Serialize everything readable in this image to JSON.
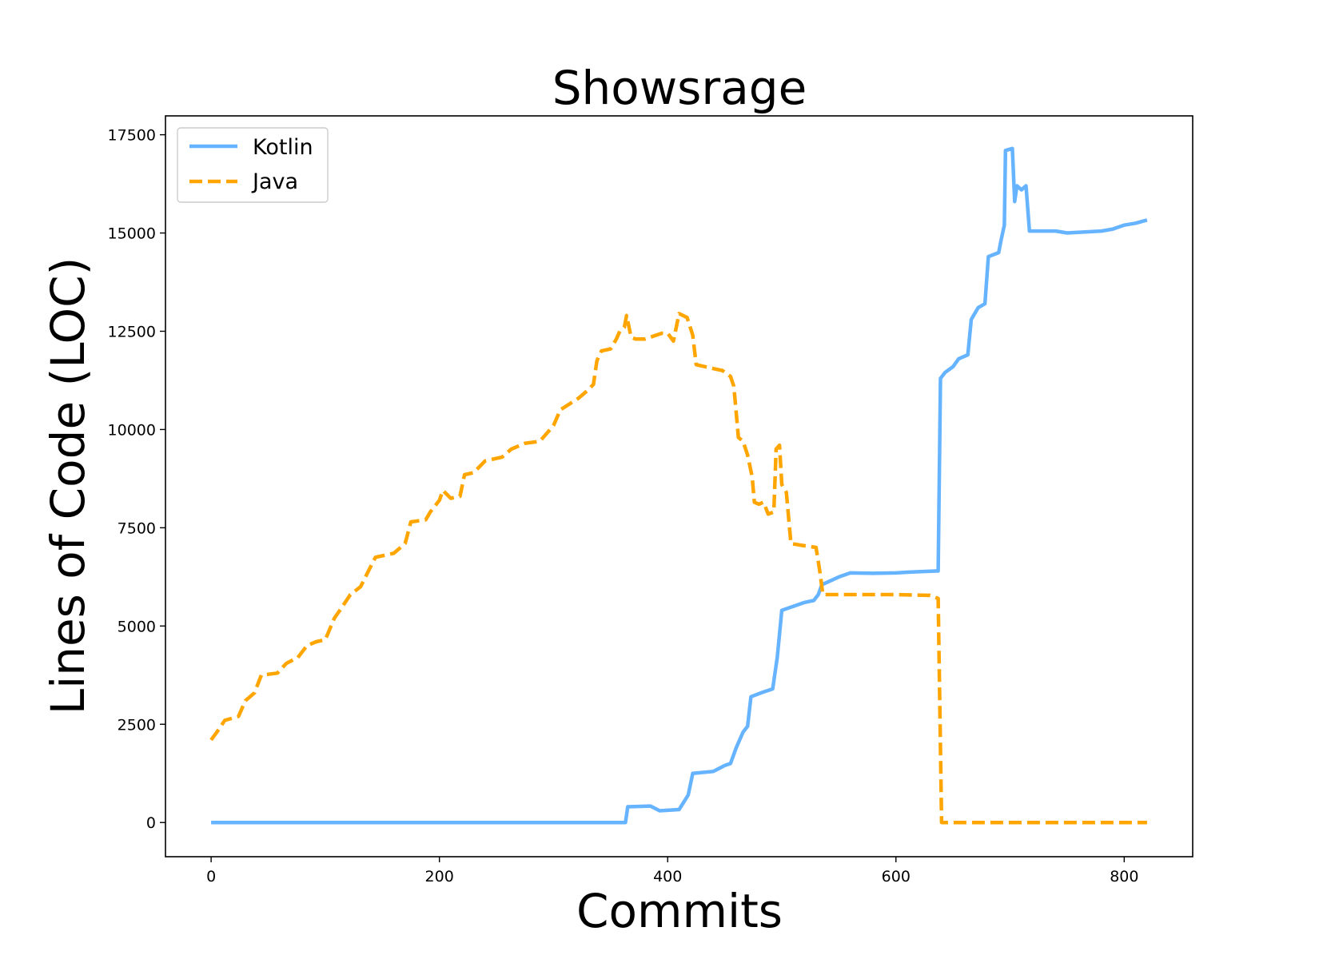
{
  "chart_data": {
    "type": "line",
    "title": "Showsrage",
    "xlabel": "Commits",
    "ylabel": "Lines of Code (LOC)",
    "xlim": [
      -40,
      860
    ],
    "ylim": [
      -870,
      17980
    ],
    "xticks": [
      0,
      200,
      400,
      600,
      800
    ],
    "yticks": [
      0,
      2500,
      5000,
      7500,
      10000,
      12500,
      15000,
      17500
    ],
    "grid": false,
    "legend_position": "top-left",
    "series": [
      {
        "name": "Kotlin",
        "color": "#66b3ff",
        "dash": "solid",
        "points": [
          [
            0,
            0
          ],
          [
            363,
            0
          ],
          [
            365,
            400
          ],
          [
            385,
            420
          ],
          [
            393,
            300
          ],
          [
            410,
            330
          ],
          [
            418,
            700
          ],
          [
            422,
            1250
          ],
          [
            440,
            1300
          ],
          [
            450,
            1450
          ],
          [
            455,
            1500
          ],
          [
            460,
            1900
          ],
          [
            466,
            2300
          ],
          [
            470,
            2450
          ],
          [
            473,
            3200
          ],
          [
            482,
            3300
          ],
          [
            492,
            3400
          ],
          [
            496,
            4200
          ],
          [
            500,
            5400
          ],
          [
            510,
            5500
          ],
          [
            520,
            5600
          ],
          [
            528,
            5650
          ],
          [
            532,
            5800
          ],
          [
            535,
            6050
          ],
          [
            550,
            6250
          ],
          [
            560,
            6350
          ],
          [
            580,
            6340
          ],
          [
            600,
            6350
          ],
          [
            610,
            6370
          ],
          [
            635,
            6400
          ],
          [
            637,
            6400
          ],
          [
            639,
            11300
          ],
          [
            643,
            11450
          ],
          [
            650,
            11600
          ],
          [
            655,
            11800
          ],
          [
            663,
            11900
          ],
          [
            666,
            12800
          ],
          [
            672,
            13100
          ],
          [
            678,
            13200
          ],
          [
            681,
            14400
          ],
          [
            690,
            14500
          ],
          [
            692,
            14800
          ],
          [
            695,
            15200
          ],
          [
            696,
            17100
          ],
          [
            702,
            17150
          ],
          [
            704,
            15800
          ],
          [
            706,
            16200
          ],
          [
            710,
            16100
          ],
          [
            714,
            16200
          ],
          [
            717,
            15050
          ],
          [
            740,
            15050
          ],
          [
            750,
            15000
          ],
          [
            780,
            15050
          ],
          [
            790,
            15100
          ],
          [
            800,
            15200
          ],
          [
            810,
            15250
          ],
          [
            820,
            15330
          ]
        ]
      },
      {
        "name": "Java",
        "color": "#ffa500",
        "dash": "dashed",
        "points": [
          [
            0,
            2100
          ],
          [
            5,
            2300
          ],
          [
            12,
            2600
          ],
          [
            24,
            2700
          ],
          [
            30,
            3100
          ],
          [
            38,
            3300
          ],
          [
            44,
            3750
          ],
          [
            58,
            3800
          ],
          [
            66,
            4050
          ],
          [
            76,
            4200
          ],
          [
            84,
            4500
          ],
          [
            92,
            4600
          ],
          [
            100,
            4650
          ],
          [
            108,
            5200
          ],
          [
            114,
            5450
          ],
          [
            122,
            5800
          ],
          [
            131,
            6000
          ],
          [
            137,
            6350
          ],
          [
            144,
            6750
          ],
          [
            160,
            6850
          ],
          [
            170,
            7100
          ],
          [
            175,
            7650
          ],
          [
            188,
            7700
          ],
          [
            192,
            7900
          ],
          [
            200,
            8200
          ],
          [
            203,
            8450
          ],
          [
            210,
            8250
          ],
          [
            218,
            8300
          ],
          [
            222,
            8850
          ],
          [
            230,
            8900
          ],
          [
            240,
            9200
          ],
          [
            255,
            9300
          ],
          [
            263,
            9500
          ],
          [
            275,
            9650
          ],
          [
            288,
            9700
          ],
          [
            300,
            10100
          ],
          [
            306,
            10500
          ],
          [
            314,
            10650
          ],
          [
            322,
            10800
          ],
          [
            330,
            11000
          ],
          [
            335,
            11150
          ],
          [
            338,
            11750
          ],
          [
            342,
            12000
          ],
          [
            350,
            12050
          ],
          [
            355,
            12300
          ],
          [
            358,
            12500
          ],
          [
            362,
            12600
          ],
          [
            364,
            12900
          ],
          [
            368,
            12350
          ],
          [
            372,
            12300
          ],
          [
            380,
            12300
          ],
          [
            390,
            12400
          ],
          [
            395,
            12450
          ],
          [
            400,
            12450
          ],
          [
            405,
            12250
          ],
          [
            410,
            12950
          ],
          [
            417,
            12850
          ],
          [
            422,
            12400
          ],
          [
            425,
            11650
          ],
          [
            440,
            11550
          ],
          [
            448,
            11500
          ],
          [
            455,
            11350
          ],
          [
            458,
            11100
          ],
          [
            462,
            9800
          ],
          [
            466,
            9700
          ],
          [
            470,
            9350
          ],
          [
            474,
            8800
          ],
          [
            476,
            8150
          ],
          [
            480,
            8100
          ],
          [
            484,
            8150
          ],
          [
            488,
            7850
          ],
          [
            493,
            7900
          ],
          [
            495,
            9500
          ],
          [
            498,
            9600
          ],
          [
            500,
            8600
          ],
          [
            504,
            8400
          ],
          [
            508,
            7100
          ],
          [
            518,
            7050
          ],
          [
            530,
            7000
          ],
          [
            533,
            6450
          ],
          [
            536,
            5800
          ],
          [
            560,
            5800
          ],
          [
            600,
            5800
          ],
          [
            630,
            5780
          ],
          [
            637,
            5700
          ],
          [
            640,
            0
          ],
          [
            820,
            0
          ]
        ]
      }
    ]
  }
}
